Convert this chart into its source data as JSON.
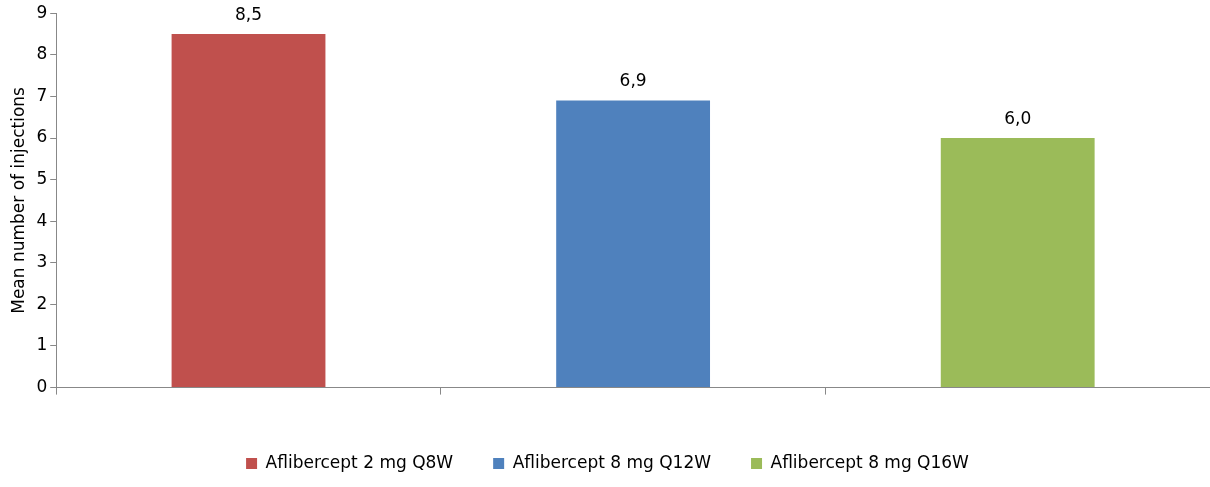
{
  "chart_data": {
    "type": "bar",
    "ylabel": "Mean number of injections",
    "categories": [
      null,
      null,
      null
    ],
    "series": [
      {
        "name": "Aflibercept 2 mg Q8W",
        "color": "#c0504d",
        "values": [
          8.5,
          null,
          null
        ],
        "value_labels": [
          "8,5",
          null,
          null
        ]
      },
      {
        "name": "Aflibercept 8 mg Q12W",
        "color": "#4f81bd",
        "values": [
          null,
          6.9,
          null
        ],
        "value_labels": [
          null,
          "6,9",
          null
        ]
      },
      {
        "name": "Aflibercept 8 mg Q16W",
        "color": "#9bbb59",
        "values": [
          null,
          null,
          6.0
        ],
        "value_labels": [
          null,
          null,
          "6,0"
        ]
      }
    ],
    "ylim": [
      0,
      9
    ],
    "yticks": [
      0,
      1,
      2,
      3,
      4,
      5,
      6,
      7,
      8,
      9
    ],
    "legend": "bottom"
  }
}
